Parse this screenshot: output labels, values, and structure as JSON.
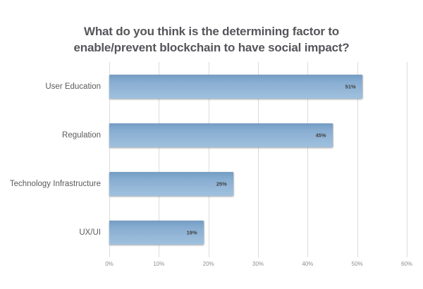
{
  "title": {
    "line1": "What do you think is the determining factor to",
    "line2": "enable/prevent blockchain to have social impact?"
  },
  "chart_data": {
    "type": "bar",
    "orientation": "horizontal",
    "title": "What do you think is the determining factor to enable/prevent blockchain to have social impact?",
    "categories": [
      "User Education",
      "Regulation",
      "Technology Infrastructure",
      "UX/UI"
    ],
    "values": [
      51,
      45,
      25,
      19
    ],
    "data_labels": [
      "51%",
      "45%",
      "25%",
      "19%"
    ],
    "xlabel": "",
    "ylabel": "",
    "xlim": [
      0,
      60
    ],
    "x_tick_labels": [
      "0%",
      "10%",
      "20%",
      "30%",
      "40%",
      "50%",
      "60%"
    ],
    "x_tick_values": [
      0,
      10,
      20,
      30,
      40,
      50,
      60
    ],
    "grid": "vertical",
    "legend_position": "none",
    "colors": {
      "bar_fill_top": "#749cc3",
      "bar_fill_bottom": "#9fc1de",
      "gridline": "#dcdcdc",
      "title_text": "#55565a",
      "category_text": "#5a5a5a",
      "tick_text": "#8e8e8e",
      "value_text": "#3f3f3f",
      "background": "#ffffff"
    }
  }
}
